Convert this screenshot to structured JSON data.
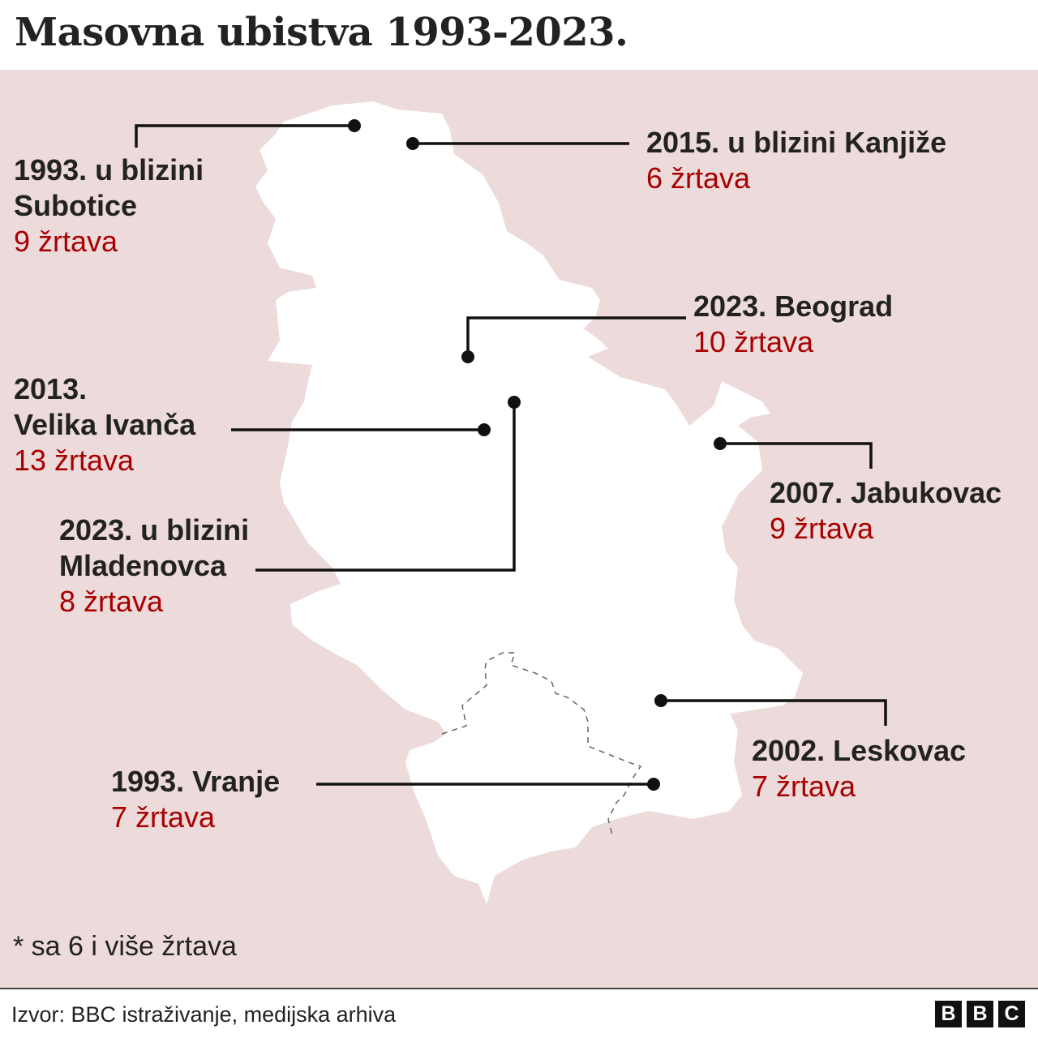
{
  "title": "Masovna ubistva 1993-2023.",
  "colors": {
    "background": "#eddada",
    "country": "#ffffff",
    "text": "#222222",
    "victims": "#a80000"
  },
  "events": [
    {
      "place": "1993. u blizini\nSubotice",
      "victims": "9 žrtava"
    },
    {
      "place": "2015. u blizini Kanjiže",
      "victims": "6 žrtava"
    },
    {
      "place": "2023. Beograd",
      "victims": "10 žrtava"
    },
    {
      "place": "2013.\nVelika Ivanča",
      "victims": "13 žrtava"
    },
    {
      "place": "2023. u blizini\nMladenovca",
      "victims": "8 žrtava"
    },
    {
      "place": "2007. Jabukovac",
      "victims": "9 žrtava"
    },
    {
      "place": "2002. Leskovac",
      "victims": "7 žrtava"
    },
    {
      "place": "1993. Vranje",
      "victims": "7 žrtava"
    }
  ],
  "note": "* sa 6 i više žrtava",
  "source": "Izvor: BBC istraživanje, medijska arhiva",
  "logo": [
    "B",
    "B",
    "C"
  ]
}
